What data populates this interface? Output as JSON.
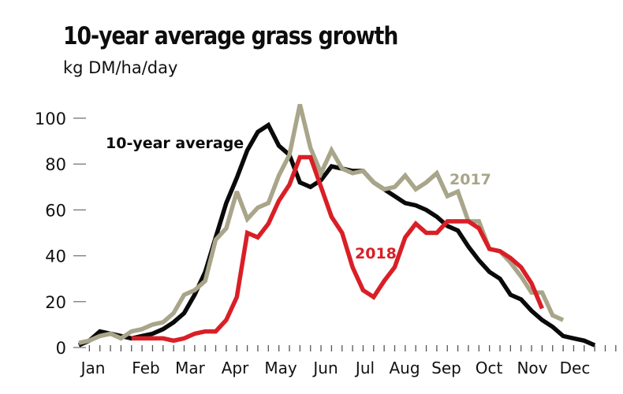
{
  "chart_data": {
    "type": "line",
    "title": "10-year average grass growth",
    "subtitle": "kg DM/ha/day",
    "xlabel": "",
    "ylabel": "kg DM/ha/day",
    "ylim": [
      0,
      110
    ],
    "yticks": [
      0,
      20,
      40,
      60,
      80,
      100
    ],
    "x_unit": "week of year",
    "month_labels": [
      "Jan",
      "Feb",
      "Mar",
      "Apr",
      "May",
      "Jun",
      "Jul",
      "Aug",
      "Sep",
      "Oct",
      "Nov",
      "Dec"
    ],
    "week_ticks": 51,
    "grid": false,
    "series": [
      {
        "name": "10-year average",
        "label": "10-year average",
        "color": "#0a0a0a",
        "start_week": 0,
        "values": [
          1,
          3,
          7,
          6,
          5,
          4,
          5,
          6,
          8,
          11,
          15,
          23,
          33,
          48,
          63,
          74,
          86,
          94,
          97,
          88,
          84,
          72,
          70,
          73,
          79,
          78,
          77,
          77,
          72,
          69,
          66,
          63,
          62,
          60,
          57,
          53,
          51,
          44,
          38,
          33,
          30,
          23,
          21,
          16,
          12,
          9,
          5,
          4,
          3,
          1
        ]
      },
      {
        "name": "2017",
        "label": "2017",
        "color": "#a9a58a",
        "start_week": 0,
        "values": [
          2,
          3,
          5,
          6,
          4,
          7,
          8,
          10,
          11,
          15,
          23,
          25,
          29,
          47,
          52,
          68,
          56,
          61,
          63,
          75,
          84,
          106,
          87,
          76,
          86,
          78,
          76,
          77,
          72,
          69,
          70,
          75,
          69,
          72,
          76,
          66,
          68,
          55,
          55,
          43,
          42,
          37,
          31,
          24,
          24,
          14,
          12
        ]
      },
      {
        "name": "2018",
        "label": "2018",
        "color": "#d91f26",
        "start_week": 5,
        "values": [
          4,
          4,
          4,
          4,
          3,
          4,
          6,
          7,
          7,
          12,
          22,
          50,
          48,
          54,
          64,
          71,
          83,
          83,
          70,
          57,
          50,
          35,
          25,
          22,
          29,
          35,
          48,
          54,
          50,
          50,
          55,
          55,
          55,
          52,
          43,
          42,
          39,
          35,
          28,
          17
        ]
      }
    ]
  }
}
